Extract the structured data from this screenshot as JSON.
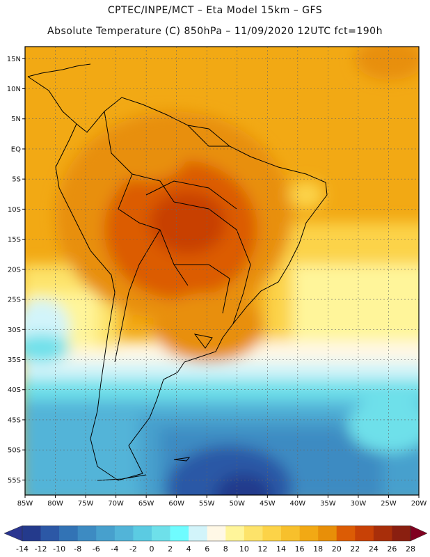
{
  "header": {
    "line1": "CPTEC/INPE/MCT  –  Eta Model 15km  –  GFS",
    "line2": "Absolute Temperature (C) 850hPa  –  11/09/2020 12UTC fct=190h"
  },
  "map": {
    "region": "South America",
    "lon_range": [
      -85,
      -20
    ],
    "lat_range": [
      -57.5,
      17
    ],
    "lon_ticks": [
      {
        "value": -85,
        "label": "85W"
      },
      {
        "value": -80,
        "label": "80W"
      },
      {
        "value": -75,
        "label": "75W"
      },
      {
        "value": -70,
        "label": "70W"
      },
      {
        "value": -65,
        "label": "65W"
      },
      {
        "value": -60,
        "label": "60W"
      },
      {
        "value": -55,
        "label": "55W"
      },
      {
        "value": -50,
        "label": "50W"
      },
      {
        "value": -45,
        "label": "45W"
      },
      {
        "value": -40,
        "label": "40W"
      },
      {
        "value": -35,
        "label": "35W"
      },
      {
        "value": -30,
        "label": "30W"
      },
      {
        "value": -25,
        "label": "25W"
      },
      {
        "value": -20,
        "label": "20W"
      }
    ],
    "lat_ticks": [
      {
        "value": 15,
        "label": "15N"
      },
      {
        "value": 10,
        "label": "10N"
      },
      {
        "value": 5,
        "label": "5N"
      },
      {
        "value": 0,
        "label": "EQ"
      },
      {
        "value": -5,
        "label": "5S"
      },
      {
        "value": -10,
        "label": "10S"
      },
      {
        "value": -15,
        "label": "15S"
      },
      {
        "value": -20,
        "label": "20S"
      },
      {
        "value": -25,
        "label": "25S"
      },
      {
        "value": -30,
        "label": "30S"
      },
      {
        "value": -35,
        "label": "35S"
      },
      {
        "value": -40,
        "label": "40S"
      },
      {
        "value": -45,
        "label": "45S"
      },
      {
        "value": -50,
        "label": "50S"
      },
      {
        "value": -55,
        "label": "55S"
      }
    ]
  },
  "colorbar": {
    "units": "C",
    "under_color": "#2a3590",
    "over_color": "#800020",
    "colors": [
      "#243a8c",
      "#2c58a6",
      "#3273b5",
      "#3d8bc2",
      "#47a0cd",
      "#52b4d8",
      "#5bcbe2",
      "#6ee0ea",
      "#6ffcff",
      "#d2f4fa",
      "#fff8e6",
      "#fff59a",
      "#fde36a",
      "#fcd348",
      "#f7c02c",
      "#f2a914",
      "#e88f08",
      "#dc5c05",
      "#c84106",
      "#a82e0a",
      "#8a1f10"
    ],
    "labels": [
      "-14",
      "-12",
      "-10",
      "-8",
      "-6",
      "-4",
      "-2",
      "0",
      "2",
      "4",
      "6",
      "8",
      "10",
      "12",
      "14",
      "16",
      "18",
      "20",
      "22",
      "24",
      "26",
      "28"
    ]
  }
}
